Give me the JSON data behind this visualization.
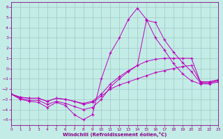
{
  "xlabel": "Windchill (Refroidissement éolien,°C)",
  "xlim": [
    0,
    23
  ],
  "ylim": [
    -5.5,
    6.5
  ],
  "yticks": [
    -5,
    -4,
    -3,
    -2,
    -1,
    0,
    1,
    2,
    3,
    4,
    5,
    6
  ],
  "xticks": [
    0,
    1,
    2,
    3,
    4,
    5,
    6,
    7,
    8,
    9,
    10,
    11,
    12,
    13,
    14,
    15,
    16,
    17,
    18,
    19,
    20,
    21,
    22,
    23
  ],
  "bg_color": "#c4ece6",
  "grid_color": "#a0c8c4",
  "line_color": "#bb00bb",
  "lines_x": [
    [
      0,
      1,
      2,
      3,
      4,
      5,
      6,
      7,
      8,
      9,
      10,
      11,
      12,
      13,
      14,
      15,
      16,
      17,
      18,
      19,
      20,
      21,
      22,
      23
    ],
    [
      0,
      1,
      2,
      3,
      4,
      5,
      6,
      7,
      8,
      9,
      10,
      11,
      12,
      13,
      14,
      15,
      16,
      17,
      18,
      19,
      20,
      21,
      22,
      23
    ],
    [
      0,
      1,
      2,
      3,
      4,
      5,
      6,
      7,
      8,
      9,
      10,
      11,
      12,
      13,
      14,
      15,
      16,
      17,
      18,
      19,
      20,
      21,
      22,
      23
    ],
    [
      0,
      1,
      2,
      3,
      4,
      5,
      6,
      7,
      8,
      9,
      10,
      11,
      12,
      13,
      14,
      15,
      16,
      17,
      18,
      19,
      20,
      21,
      22,
      23
    ]
  ],
  "lines_y": [
    [
      -2.5,
      -3.0,
      -3.2,
      -3.3,
      -3.8,
      -3.3,
      -3.6,
      -4.5,
      -5.0,
      -4.5,
      -1.0,
      1.5,
      3.0,
      4.8,
      5.9,
      4.8,
      3.0,
      1.8,
      0.5,
      -0.5,
      -1.2,
      -1.5,
      -1.5,
      -1.3
    ],
    [
      -2.5,
      -2.9,
      -3.1,
      -3.1,
      -3.5,
      -3.2,
      -3.4,
      -3.7,
      -4.0,
      -3.8,
      -3.0,
      -1.8,
      -1.0,
      -0.3,
      0.3,
      4.7,
      4.5,
      2.8,
      1.6,
      0.6,
      -0.3,
      -1.4,
      -1.4,
      -1.2
    ],
    [
      -2.5,
      -2.8,
      -2.9,
      -2.9,
      -3.2,
      -2.9,
      -3.0,
      -3.2,
      -3.4,
      -3.2,
      -2.5,
      -1.5,
      -0.8,
      -0.2,
      0.3,
      0.7,
      0.9,
      1.0,
      1.0,
      1.0,
      1.0,
      -1.3,
      -1.3,
      -1.1
    ],
    [
      -2.5,
      -2.8,
      -2.9,
      -2.9,
      -3.2,
      -2.9,
      -3.0,
      -3.2,
      -3.5,
      -3.3,
      -2.7,
      -2.0,
      -1.6,
      -1.3,
      -1.0,
      -0.7,
      -0.4,
      -0.2,
      0.0,
      0.2,
      0.3,
      -1.3,
      -1.3,
      -1.1
    ]
  ]
}
